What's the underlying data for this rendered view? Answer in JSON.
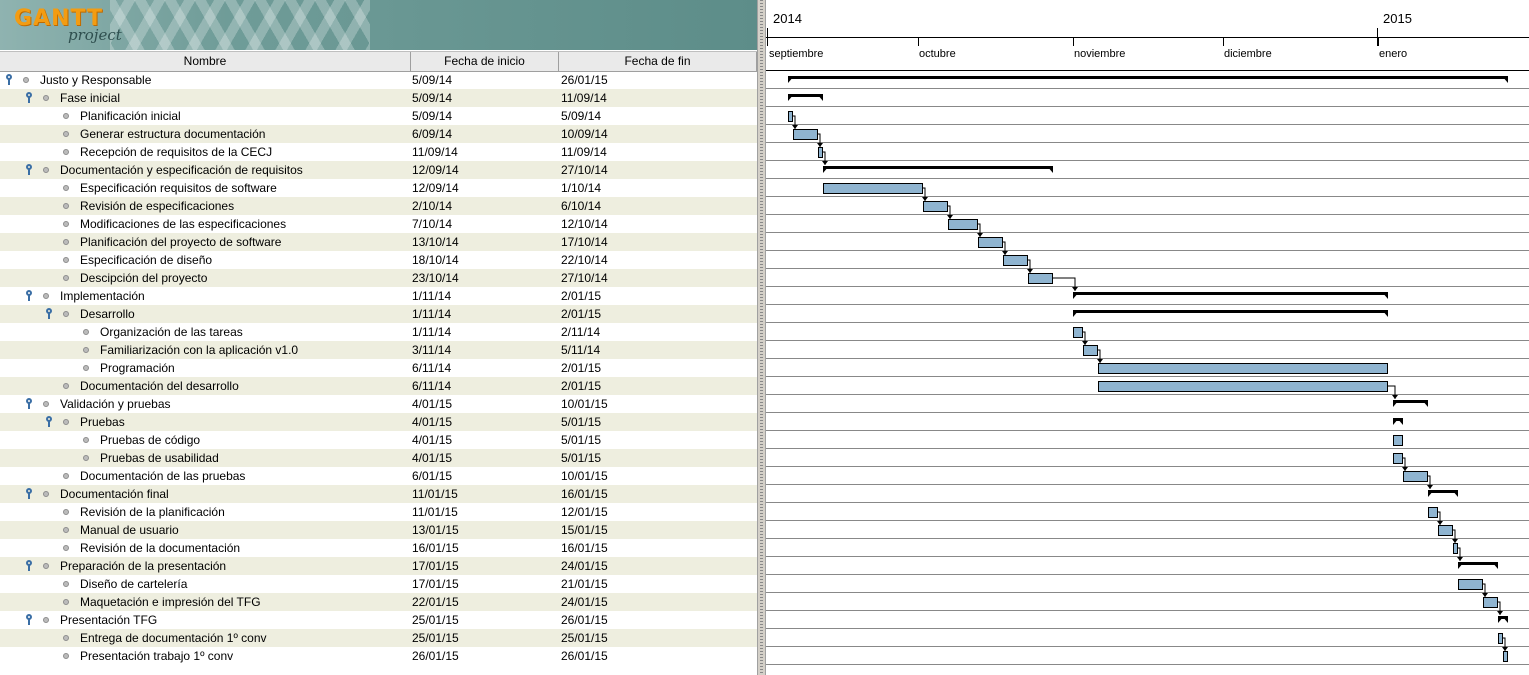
{
  "app": {
    "logo_main": "GANTT",
    "logo_sub": "project"
  },
  "columns": {
    "name": "Nombre",
    "start": "Fecha de inicio",
    "end": "Fecha de fin"
  },
  "timeline": {
    "years": [
      "2014",
      "2015"
    ],
    "months": [
      "septiembre",
      "octubre",
      "noviembre",
      "diciembre",
      "enero"
    ]
  },
  "colors": {
    "task_bar": "#8fb4d0",
    "summary_bar": "#000000",
    "row_alt": "#eeeedf",
    "dependency": "#000000"
  },
  "tasks": [
    {
      "name": "Justo y Responsable",
      "start": "5/09/14",
      "end": "26/01/15",
      "level": 0,
      "summary": true
    },
    {
      "name": "Fase inicial",
      "start": "5/09/14",
      "end": "11/09/14",
      "level": 1,
      "summary": true
    },
    {
      "name": "Planificación inicial",
      "start": "5/09/14",
      "end": "5/09/14",
      "level": 2,
      "summary": false
    },
    {
      "name": "Generar estructura documentación",
      "start": "6/09/14",
      "end": "10/09/14",
      "level": 2,
      "summary": false
    },
    {
      "name": "Recepción de requisitos de la CECJ",
      "start": "11/09/14",
      "end": "11/09/14",
      "level": 2,
      "summary": false
    },
    {
      "name": "Documentación y especificación de requisitos",
      "start": "12/09/14",
      "end": "27/10/14",
      "level": 1,
      "summary": true
    },
    {
      "name": "Especificación requisitos de software",
      "start": "12/09/14",
      "end": "1/10/14",
      "level": 2,
      "summary": false
    },
    {
      "name": "Revisión de especificaciones",
      "start": "2/10/14",
      "end": "6/10/14",
      "level": 2,
      "summary": false
    },
    {
      "name": "Modificaciones de las especificaciones",
      "start": "7/10/14",
      "end": "12/10/14",
      "level": 2,
      "summary": false
    },
    {
      "name": "Planificación del proyecto de software",
      "start": "13/10/14",
      "end": "17/10/14",
      "level": 2,
      "summary": false
    },
    {
      "name": "Especificación de diseño",
      "start": "18/10/14",
      "end": "22/10/14",
      "level": 2,
      "summary": false
    },
    {
      "name": "Descipción del proyecto",
      "start": "23/10/14",
      "end": "27/10/14",
      "level": 2,
      "summary": false
    },
    {
      "name": "Implementación",
      "start": "1/11/14",
      "end": "2/01/15",
      "level": 1,
      "summary": true
    },
    {
      "name": "Desarrollo",
      "start": "1/11/14",
      "end": "2/01/15",
      "level": 2,
      "summary": true
    },
    {
      "name": "Organización de las tareas",
      "start": "1/11/14",
      "end": "2/11/14",
      "level": 3,
      "summary": false
    },
    {
      "name": "Familiarización con la aplicación v1.0",
      "start": "3/11/14",
      "end": "5/11/14",
      "level": 3,
      "summary": false
    },
    {
      "name": "Programación",
      "start": "6/11/14",
      "end": "2/01/15",
      "level": 3,
      "summary": false
    },
    {
      "name": "Documentación del desarrollo",
      "start": "6/11/14",
      "end": "2/01/15",
      "level": 2,
      "summary": false
    },
    {
      "name": "Validación y pruebas",
      "start": "4/01/15",
      "end": "10/01/15",
      "level": 1,
      "summary": true
    },
    {
      "name": "Pruebas",
      "start": "4/01/15",
      "end": "5/01/15",
      "level": 2,
      "summary": true
    },
    {
      "name": "Pruebas de código",
      "start": "4/01/15",
      "end": "5/01/15",
      "level": 3,
      "summary": false
    },
    {
      "name": "Pruebas de usabilidad",
      "start": "4/01/15",
      "end": "5/01/15",
      "level": 3,
      "summary": false
    },
    {
      "name": "Documentación de las pruebas",
      "start": "6/01/15",
      "end": "10/01/15",
      "level": 2,
      "summary": false
    },
    {
      "name": "Documentación final",
      "start": "11/01/15",
      "end": "16/01/15",
      "level": 1,
      "summary": true
    },
    {
      "name": "Revisión de la planificación",
      "start": "11/01/15",
      "end": "12/01/15",
      "level": 2,
      "summary": false
    },
    {
      "name": "Manual de usuario",
      "start": "13/01/15",
      "end": "15/01/15",
      "level": 2,
      "summary": false
    },
    {
      "name": "Revisión de la documentación",
      "start": "16/01/15",
      "end": "16/01/15",
      "level": 2,
      "summary": false
    },
    {
      "name": "Preparación de la presentación",
      "start": "17/01/15",
      "end": "24/01/15",
      "level": 1,
      "summary": true
    },
    {
      "name": "Diseño de cartelería",
      "start": "17/01/15",
      "end": "21/01/15",
      "level": 2,
      "summary": false
    },
    {
      "name": "Maquetación e impresión del TFG",
      "start": "22/01/15",
      "end": "24/01/15",
      "level": 2,
      "summary": false
    },
    {
      "name": "Presentación TFG",
      "start": "25/01/15",
      "end": "26/01/15",
      "level": 1,
      "summary": true
    },
    {
      "name": "Entrega de documentación 1º conv",
      "start": "25/01/15",
      "end": "25/01/15",
      "level": 2,
      "summary": false
    },
    {
      "name": "Presentación trabajo 1º conv",
      "start": "26/01/15",
      "end": "26/01/15",
      "level": 2,
      "summary": false
    }
  ]
}
